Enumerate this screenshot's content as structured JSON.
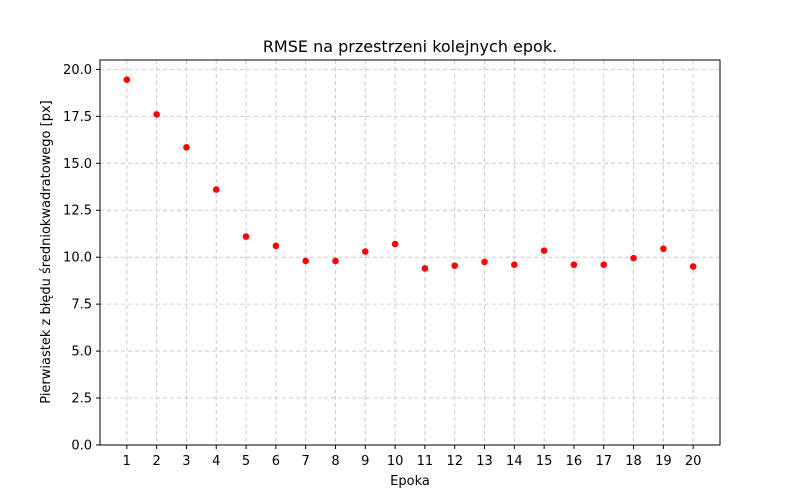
{
  "chart_data": {
    "type": "scatter",
    "title": "RMSE na przestrzeni kolejnych epok.",
    "xlabel": "Epoka",
    "ylabel": "Pierwiastek z błędu średniokwadratowego [px]",
    "x": [
      1,
      2,
      3,
      4,
      5,
      6,
      7,
      8,
      9,
      10,
      11,
      12,
      13,
      14,
      15,
      16,
      17,
      18,
      19,
      20
    ],
    "y": [
      19.45,
      17.6,
      15.85,
      13.6,
      11.1,
      10.6,
      9.8,
      9.8,
      10.3,
      10.7,
      9.4,
      9.55,
      9.75,
      9.6,
      10.35,
      9.6,
      9.6,
      9.95,
      10.45,
      9.5
    ],
    "xticks": [
      1,
      2,
      3,
      4,
      5,
      6,
      7,
      8,
      9,
      10,
      11,
      12,
      13,
      14,
      15,
      16,
      17,
      18,
      19,
      20
    ],
    "yticks": [
      "0.0",
      "2.5",
      "5.0",
      "7.5",
      "10.0",
      "12.5",
      "15.0",
      "17.5",
      "20.0"
    ],
    "xlim": [
      0.1,
      20.9
    ],
    "ylim": [
      0,
      20.5
    ],
    "grid": true,
    "marker_color": "#ff0000"
  }
}
